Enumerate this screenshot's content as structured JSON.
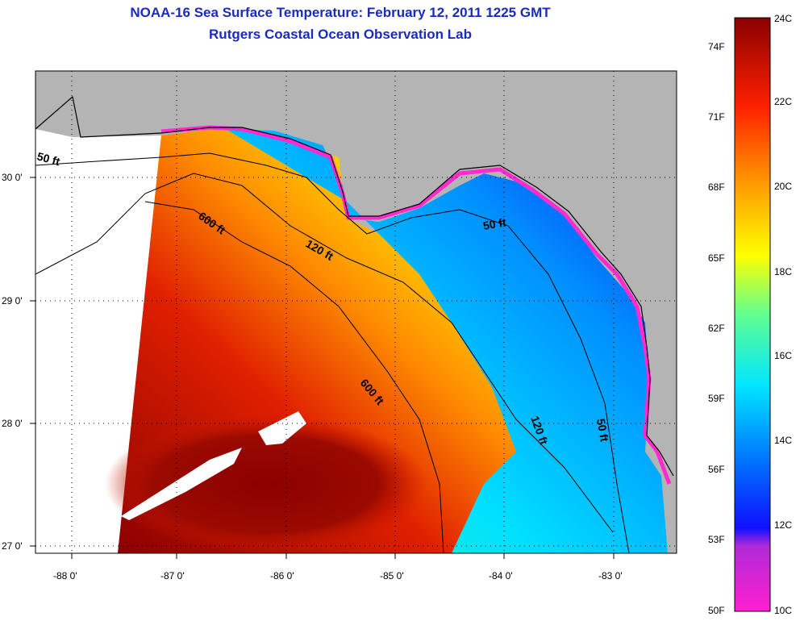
{
  "title": {
    "line1": "NOAA-16 Sea Surface Temperature:  February 12, 2011 1225 GMT",
    "line2": "Rutgers Coastal Ocean Observation Lab"
  },
  "map": {
    "region": "Northeastern Gulf of Mexico / Florida Big Bend",
    "lat_range": [
      26.95,
      30.85
    ],
    "lon_range": [
      -88.3,
      -82.4
    ],
    "lat_ticks": [
      "27 0'",
      "28 0'",
      "29 0'",
      "30 0'"
    ],
    "lon_ticks": [
      "-88 0'",
      "-87 0'",
      "-86 0'",
      "-85 0'",
      "-84 0'",
      "-83 0'"
    ],
    "land_color": "#b4b4b4",
    "nodata_color": "#ffffff",
    "grid": "dotted"
  },
  "contours": {
    "labels": [
      "50 ft",
      "600 ft",
      "120 ft",
      "50 ft",
      "600 ft",
      "120 ft",
      "50 ft"
    ]
  },
  "colorbar": {
    "fahrenheit_labels": [
      "74F",
      "71F",
      "68F",
      "65F",
      "62F",
      "59F",
      "56F",
      "53F",
      "50F"
    ],
    "celsius_labels": [
      "24C",
      "22C",
      "20C",
      "18C",
      "16C",
      "14C",
      "12C",
      "10C"
    ],
    "range_c": [
      10,
      24
    ],
    "colors": [
      "#ff1fd0",
      "#7a2bd9",
      "#0000ff",
      "#0090ff",
      "#00e6ff",
      "#70ff90",
      "#ffff00",
      "#ffa000",
      "#ff2000",
      "#8b0000"
    ]
  }
}
